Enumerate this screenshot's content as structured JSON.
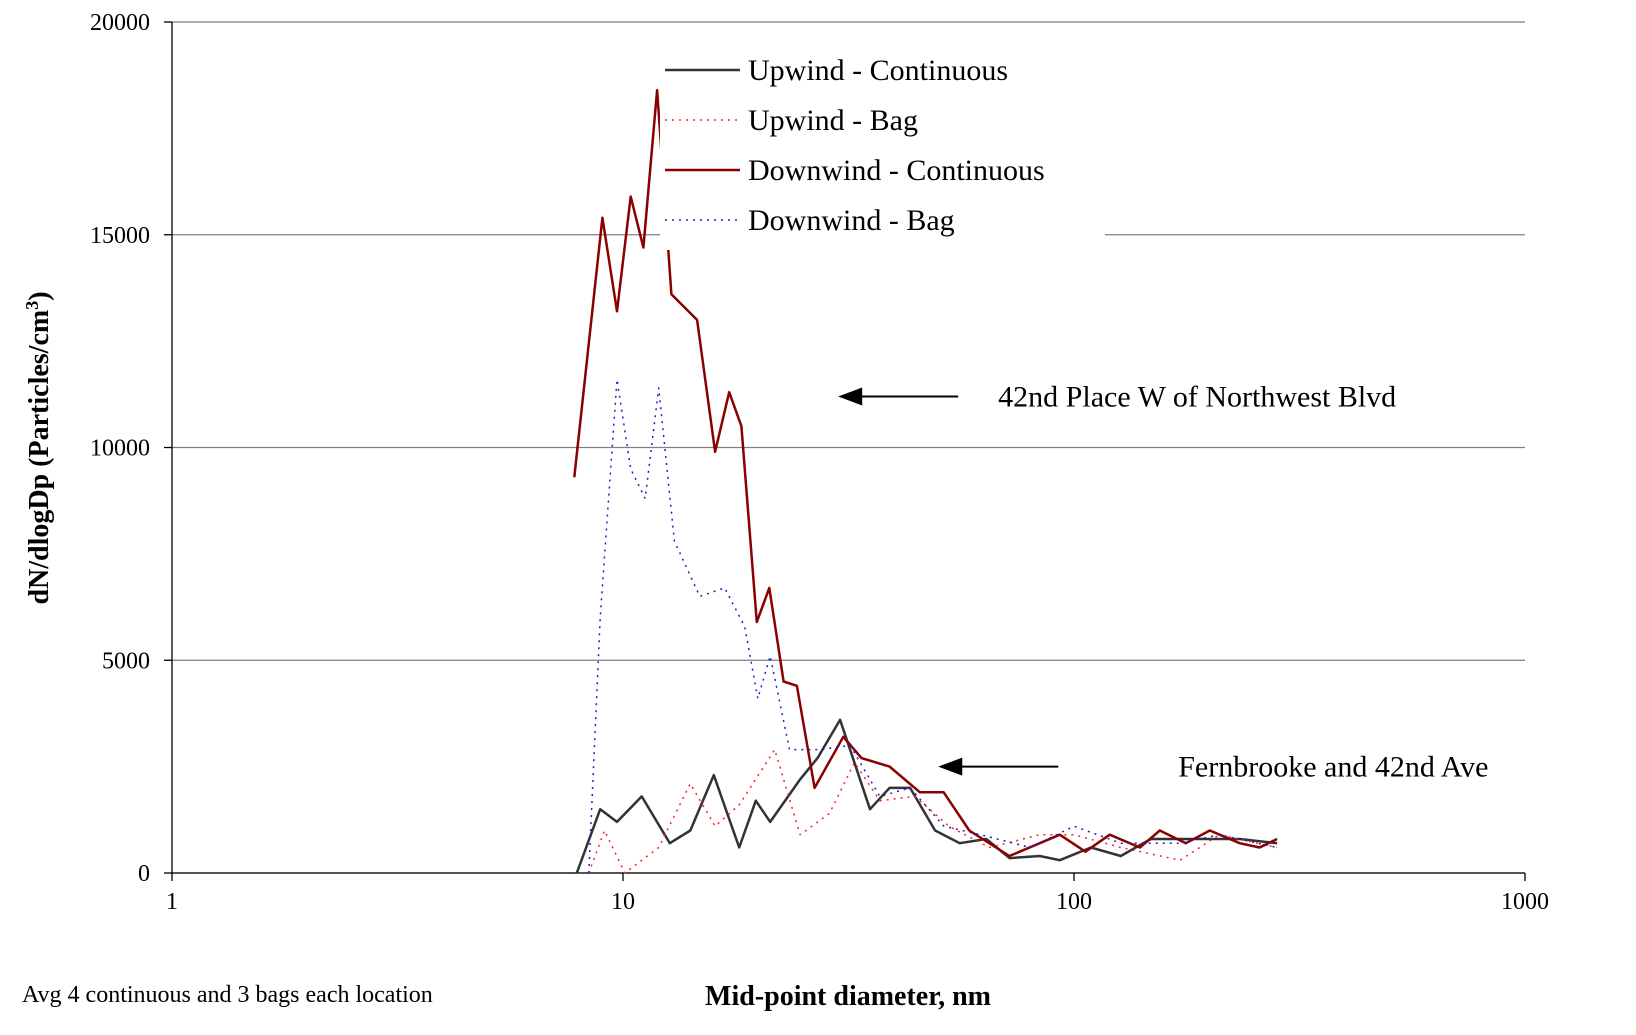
{
  "chart_data": {
    "type": "line",
    "x_label": "Mid-point diameter, nm",
    "y_label": {
      "text": "dN/dlogDp (Particles/cm",
      "sup": "3",
      "tail": ")"
    },
    "note": "Avg 4 continuous and 3 bags each location",
    "x_log": true,
    "xlim": [
      1,
      1000
    ],
    "xticks": [
      1,
      10,
      100,
      1000
    ],
    "ylim": [
      0,
      20000
    ],
    "yticks": [
      0,
      5000,
      10000,
      15000,
      20000
    ],
    "grid": true,
    "annotations": [
      {
        "text": "42nd Place W of Northwest Blvd",
        "x": 30,
        "y": 11200
      },
      {
        "text": "Fernbrooke and 42nd Ave",
        "x": 50,
        "y": 2500
      }
    ],
    "series": [
      {
        "name": "Upwind - Continuous",
        "color": "#333333",
        "dash": "solid",
        "x": [
          7.9,
          8.9,
          9.7,
          11.0,
          12.7,
          14.1,
          15.9,
          18.1,
          19.7,
          21.2,
          24.7,
          27.0,
          30.3,
          35.3,
          39.0,
          43.3,
          49.2,
          55.8,
          63.9,
          72,
          84,
          93,
          109,
          127,
          148,
          190,
          233,
          282
        ],
        "values": [
          0,
          1500,
          1200,
          1800,
          700,
          1000,
          2300,
          600,
          1700,
          1200,
          2200,
          2700,
          3600,
          1500,
          2000,
          2000,
          1000,
          700,
          800,
          350,
          400,
          300,
          600,
          400,
          800,
          800,
          800,
          700
        ]
      },
      {
        "name": "Upwind - Bag",
        "color": "#ff2020",
        "dash": "dotted",
        "x": [
          8.4,
          9.1,
          10.1,
          12.0,
          14.1,
          16.0,
          18.1,
          21.7,
          24.7,
          28.7,
          32.6,
          37.1,
          44.4,
          52.8,
          65,
          84,
          100,
          127,
          172,
          210,
          282
        ],
        "values": [
          0,
          1000,
          0,
          600,
          2100,
          1100,
          1600,
          2900,
          900,
          1400,
          2600,
          1700,
          1800,
          1100,
          600,
          900,
          900,
          600,
          300,
          900,
          600
        ]
      },
      {
        "name": "Downwind - Continuous",
        "color": "#8b0000",
        "dash": "solid",
        "x": [
          7.8,
          9.0,
          9.7,
          10.4,
          11.1,
          11.9,
          12.8,
          14.6,
          16.0,
          17.2,
          18.3,
          19.8,
          21.1,
          22.7,
          24.3,
          26.6,
          30.8,
          33.8,
          39.0,
          45.5,
          51.4,
          58.6,
          71.9,
          84,
          93,
          106,
          120,
          140,
          155,
          177,
          200,
          233,
          258,
          282
        ],
        "values": [
          9300,
          15400,
          13200,
          15900,
          14700,
          18400,
          13600,
          13000,
          9900,
          11300,
          10500,
          5900,
          6700,
          4500,
          4400,
          2000,
          3200,
          2700,
          2500,
          1900,
          1900,
          1000,
          400,
          700,
          900,
          500,
          900,
          600,
          1000,
          700,
          1000,
          700,
          600,
          800
        ]
      },
      {
        "name": "Downwind - Bag",
        "color": "#2020c0",
        "dash": "dotted",
        "x": [
          8.4,
          8.9,
          9.7,
          10.4,
          11.2,
          12.0,
          13.0,
          14.8,
          16.8,
          18.6,
          19.9,
          21.2,
          23.4,
          27.3,
          31.9,
          37.1,
          43.3,
          51.5,
          62,
          80,
          100,
          127,
          172,
          210,
          282
        ],
        "values": [
          0,
          6000,
          11600,
          9500,
          8800,
          11400,
          7800,
          6500,
          6700,
          5800,
          4100,
          5100,
          2900,
          2900,
          3000,
          1800,
          2000,
          1100,
          900,
          600,
          1100,
          700,
          700,
          900,
          600
        ]
      }
    ]
  }
}
